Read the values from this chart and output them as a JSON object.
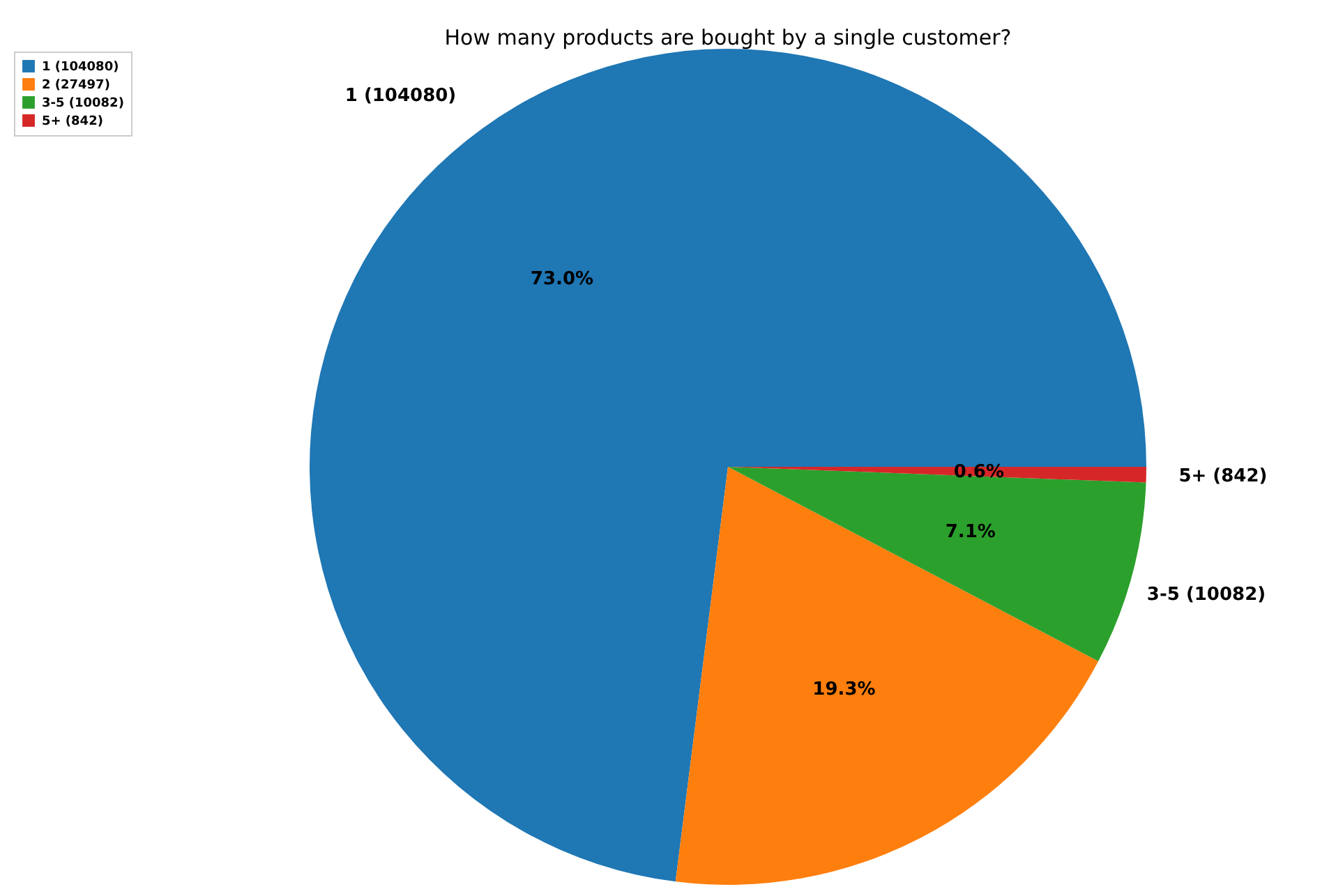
{
  "chart_data": {
    "type": "pie",
    "title": "How many products are bought by a single customer?",
    "categories": [
      "1 (104080)",
      "2 (27497)",
      "3-5 (10082)",
      "5+ (842)"
    ],
    "values": [
      73.0,
      19.3,
      7.1,
      0.6
    ],
    "colors": [
      "#1f77b4",
      "#ff7f0e",
      "#2ca02c",
      "#d62728"
    ],
    "value_labels": [
      "73.0%",
      "19.3%",
      "7.1%",
      "0.6%"
    ],
    "legend": "top left"
  }
}
